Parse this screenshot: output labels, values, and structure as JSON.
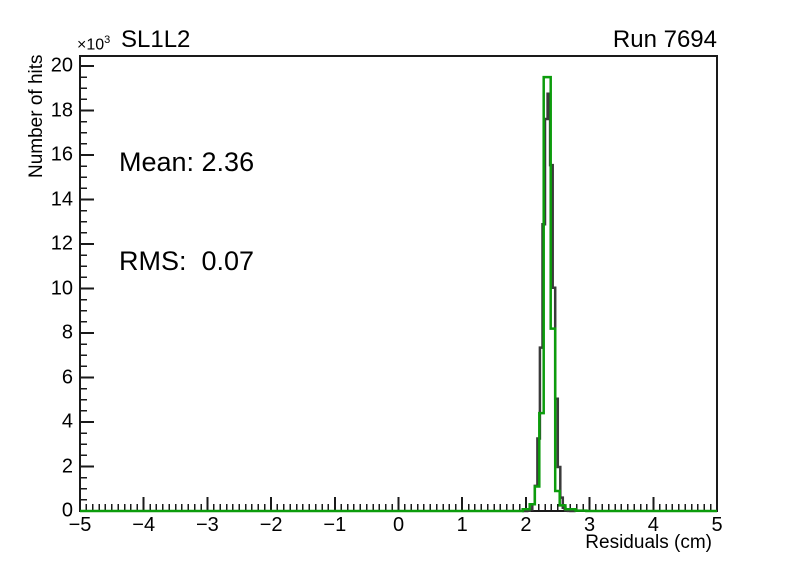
{
  "header": {
    "title": "SL1L2",
    "run_label": "Run 7694"
  },
  "stats": {
    "mean_label": "Mean: 2.36",
    "rms_label": "RMS:  0.07"
  },
  "chart_data": {
    "type": "line",
    "subtype": "step-histogram-overlay",
    "title": "SL1L2",
    "annotation_right": "Run 7694",
    "xlabel": "Residuals (cm)",
    "ylabel": "Number of hits",
    "y_exponent_base": "×10",
    "y_exponent_power": "3",
    "y_unit_scale": 1000,
    "stats": {
      "mean": 2.36,
      "rms": 0.07
    },
    "xlim": [
      -5,
      5
    ],
    "ylim": [
      0,
      20.45
    ],
    "x_major_step": 1,
    "x_minor_step": 0.1,
    "y_major_step": 2,
    "y_minor_step": 0.5,
    "grid": false,
    "legend": null,
    "axis_color": "#1a1a1a",
    "x_tick_values": [
      -5,
      -4,
      -3,
      -2,
      -1,
      0,
      1,
      2,
      3,
      4,
      5
    ],
    "x_tick_labels": [
      "−5",
      "−4",
      "−3",
      "−2",
      "−1",
      "0",
      "1",
      "2",
      "3",
      "4",
      "5"
    ],
    "y_tick_values": [
      0,
      2,
      4,
      6,
      8,
      10,
      12,
      14,
      16,
      18,
      20
    ],
    "y_tick_labels": [
      "0",
      "2",
      "4",
      "6",
      "8",
      "10",
      "12",
      "14",
      "16",
      "18",
      "20"
    ],
    "series": [
      {
        "name": "fit-histogram",
        "color": "#3a3a3a",
        "line_width": 2.5,
        "type": "gaussian_steps",
        "amplitude": 18.9,
        "mean": 2.35,
        "sigma": 0.08,
        "bin_width": 0.04,
        "range": [
          1.94,
          2.78
        ]
      },
      {
        "name": "hits-histogram",
        "color": "#0c9c0c",
        "line_width": 2.5,
        "type": "steps",
        "points": [
          [
            -5,
            0
          ],
          [
            1.95,
            0
          ],
          [
            1.95,
            0.08
          ],
          [
            2.06,
            0.08
          ],
          [
            2.06,
            0.3
          ],
          [
            2.14,
            0.3
          ],
          [
            2.14,
            1.1
          ],
          [
            2.21,
            1.1
          ],
          [
            2.21,
            4.4
          ],
          [
            2.28,
            4.4
          ],
          [
            2.28,
            19.5
          ],
          [
            2.39,
            19.5
          ],
          [
            2.39,
            8.2
          ],
          [
            2.46,
            8.2
          ],
          [
            2.46,
            0.9
          ],
          [
            2.53,
            0.9
          ],
          [
            2.53,
            0.25
          ],
          [
            2.62,
            0.25
          ],
          [
            2.62,
            0.08
          ],
          [
            2.78,
            0.08
          ],
          [
            2.78,
            0.02
          ],
          [
            2.95,
            0.02
          ],
          [
            2.95,
            0
          ],
          [
            5,
            0
          ]
        ]
      }
    ]
  }
}
